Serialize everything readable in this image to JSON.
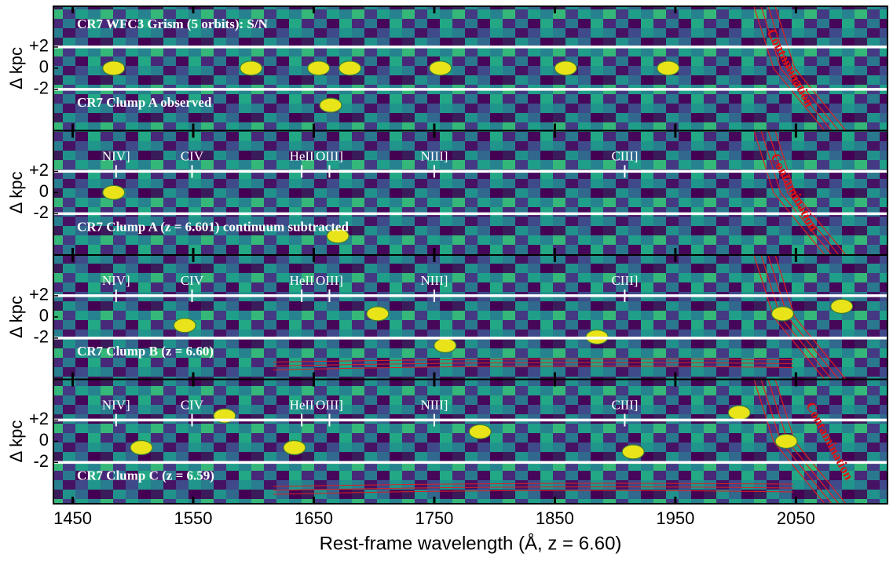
{
  "chart_data": {
    "type": "heatmap",
    "xlabel": "Rest-frame wavelength (Å, z = 6.60)",
    "xlim": [
      1434,
      2126
    ],
    "xticks": [
      1450,
      1550,
      1650,
      1750,
      1850,
      1950,
      2050
    ],
    "panels": [
      {
        "title": "CR7 WFC3 Grism (5 orbits): S/N",
        "label": "CR7 Clump A observed",
        "ylabel": "Δ kpc",
        "ylim": [
          -5.9,
          5.85
        ],
        "yticks": [
          {
            "value": 2,
            "label": "+2"
          },
          0,
          -2
        ],
        "extraction_window": [
          -2,
          2
        ],
        "contamination_label": "Contamination",
        "lines": [],
        "sources": [
          {
            "x": 1484,
            "y": 0
          },
          {
            "x": 1598,
            "y": 0
          },
          {
            "x": 1654,
            "y": 0
          },
          {
            "x": 1680,
            "y": 0
          },
          {
            "x": 1755,
            "y": 0
          },
          {
            "x": 1859,
            "y": 0
          },
          {
            "x": 1944,
            "y": 0
          },
          {
            "x": 1664,
            "y": -3.5
          }
        ]
      },
      {
        "label": "CR7 Clump A (z = 6.601) continuum subtracted",
        "ylabel": "Δ kpc",
        "ylim": [
          -5.9,
          5.85
        ],
        "yticks": [
          {
            "value": 2,
            "label": "+2"
          },
          0,
          -2
        ],
        "extraction_window": [
          -2,
          2
        ],
        "contamination_label": "Contamination",
        "lines": [
          {
            "label": "NIV]",
            "wavelength": 1486
          },
          {
            "label": "CIV",
            "wavelength": 1549
          },
          {
            "label": "HeII",
            "wavelength": 1640
          },
          {
            "label": "OIII]",
            "wavelength": 1663
          },
          {
            "label": "NIII]",
            "wavelength": 1750
          },
          {
            "label": "CIII]",
            "wavelength": 1908
          }
        ],
        "sources": [
          {
            "x": 1484,
            "y": 0
          },
          {
            "x": 1670,
            "y": -4.1
          }
        ]
      },
      {
        "label": "CR7 Clump B (z = 6.60)",
        "ylabel": "Δ kpc",
        "ylim": [
          -5.9,
          5.85
        ],
        "yticks": [
          {
            "value": 2,
            "label": "+2"
          },
          0,
          -2
        ],
        "extraction_window": [
          -2,
          2
        ],
        "lines": [
          {
            "label": "NIV]",
            "wavelength": 1486
          },
          {
            "label": "CIV",
            "wavelength": 1549
          },
          {
            "label": "HeII",
            "wavelength": 1640
          },
          {
            "label": "OIII]",
            "wavelength": 1663
          },
          {
            "label": "NIII]",
            "wavelength": 1750
          },
          {
            "label": "CIII]",
            "wavelength": 1908
          }
        ],
        "sources": [
          {
            "x": 1543,
            "y": -0.8
          },
          {
            "x": 1759,
            "y": -2.7
          },
          {
            "x": 1703,
            "y": 0.3
          },
          {
            "x": 2088,
            "y": 1
          },
          {
            "x": 2039,
            "y": 0.3
          },
          {
            "x": 1885,
            "y": -1.9
          }
        ]
      },
      {
        "label": "CR7 Clump C (z = 6.59)",
        "ylabel": "Δ kpc",
        "ylim": [
          -5.9,
          5.85
        ],
        "yticks": [
          {
            "value": 2,
            "label": "+2"
          },
          0,
          -2
        ],
        "extraction_window": [
          -2,
          2
        ],
        "contamination_label": "Contamination",
        "lines": [
          {
            "label": "NIV]",
            "wavelength": 1486
          },
          {
            "label": "CIV",
            "wavelength": 1549
          },
          {
            "label": "HeII",
            "wavelength": 1640
          },
          {
            "label": "OIII]",
            "wavelength": 1663
          },
          {
            "label": "NIII]",
            "wavelength": 1750
          },
          {
            "label": "CIII]",
            "wavelength": 1908
          }
        ],
        "sources": [
          {
            "x": 1576,
            "y": 2.4
          },
          {
            "x": 1507,
            "y": -0.6
          },
          {
            "x": 1634,
            "y": -0.6
          },
          {
            "x": 1788,
            "y": 0.9
          },
          {
            "x": 1915,
            "y": -1
          },
          {
            "x": 2003,
            "y": 2.7
          },
          {
            "x": 2042,
            "y": 0
          }
        ]
      }
    ]
  }
}
